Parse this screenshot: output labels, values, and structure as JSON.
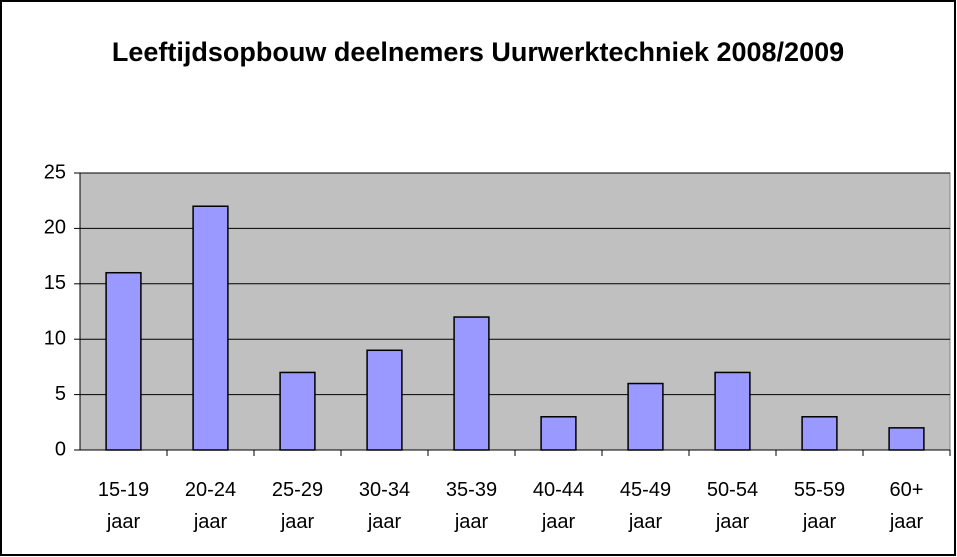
{
  "chart_data": {
    "type": "bar",
    "title": "Leeftijdsopbouw deelnemers Uurwerktechniek 2008/2009",
    "categories": [
      "15-19 jaar",
      "20-24 jaar",
      "25-29 jaar",
      "30-34 jaar",
      "35-39 jaar",
      "40-44 jaar",
      "45-49 jaar",
      "50-54 jaar",
      "55-59 jaar",
      "60+ jaar"
    ],
    "values": [
      16,
      22,
      7,
      9,
      12,
      3,
      6,
      7,
      3,
      2
    ],
    "color": "#9999ff",
    "ylim": [
      0,
      25
    ],
    "yticks": [
      0,
      5,
      10,
      15,
      20,
      25
    ],
    "grid": true
  }
}
